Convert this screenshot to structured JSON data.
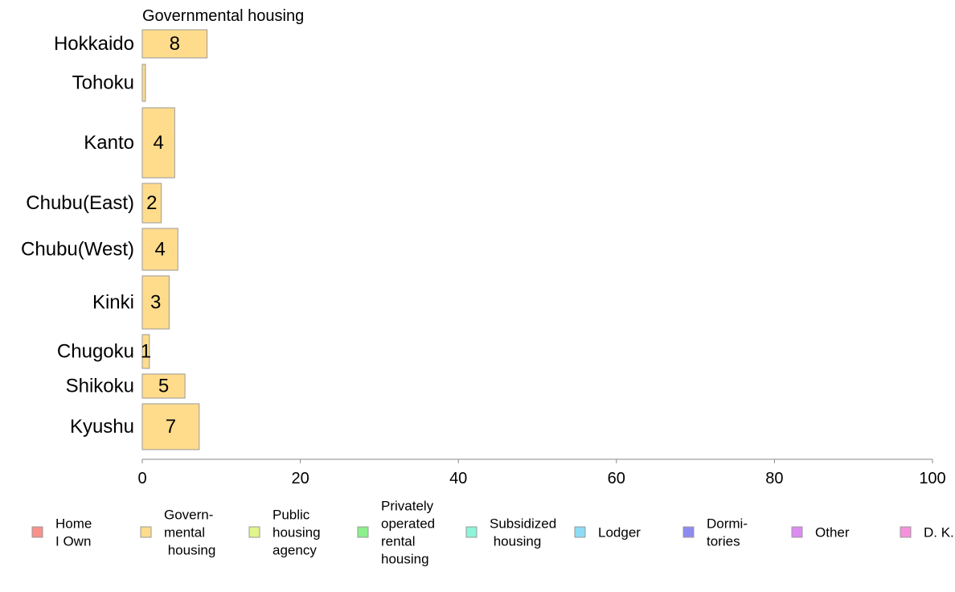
{
  "chart_data": {
    "type": "bar",
    "orientation": "horizontal",
    "title": "Governmental housing",
    "categories": [
      "Hokkaido",
      "Tohoku",
      "Kanto",
      "Chubu(East)",
      "Chubu(West)",
      "Kinki",
      "Chugoku",
      "Shikoku",
      "Kyushu"
    ],
    "values": [
      8.2,
      0.4,
      4.1,
      2.4,
      4.5,
      3.4,
      0.9,
      5.4,
      7.2
    ],
    "data_labels": [
      "8",
      "",
      "4",
      "2",
      "4",
      "3",
      "1",
      "5",
      "7"
    ],
    "bar_color": "#FFDC8C",
    "bar_stroke": "#999999",
    "xlim": [
      0,
      100
    ],
    "x_ticks": [
      "0",
      "20",
      "40",
      "60",
      "80",
      "100"
    ],
    "xlabel": "",
    "ylabel": "",
    "grid": false,
    "legend_position": "bottom",
    "legend": [
      {
        "lines": [
          "Home",
          "I Own"
        ],
        "color": "#F8918A"
      },
      {
        "lines": [
          "Govern-",
          "mental",
          " housing"
        ],
        "color": "#FFDC8C"
      },
      {
        "lines": [
          "Public",
          "housing",
          "agency"
        ],
        "color": "#E1F58C"
      },
      {
        "lines": [
          "Privately",
          "operated",
          "rental",
          "housing"
        ],
        "color": "#8CF08C"
      },
      {
        "lines": [
          "Subsidized",
          " housing"
        ],
        "color": "#8CF5DC"
      },
      {
        "lines": [
          "Lodger"
        ],
        "color": "#8CDCF5"
      },
      {
        "lines": [
          "Dormi-",
          "tories"
        ],
        "color": "#8C8CF0"
      },
      {
        "lines": [
          "Other"
        ],
        "color": "#DC8CF0"
      },
      {
        "lines": [
          "D. K."
        ],
        "color": "#F591DC"
      }
    ]
  }
}
